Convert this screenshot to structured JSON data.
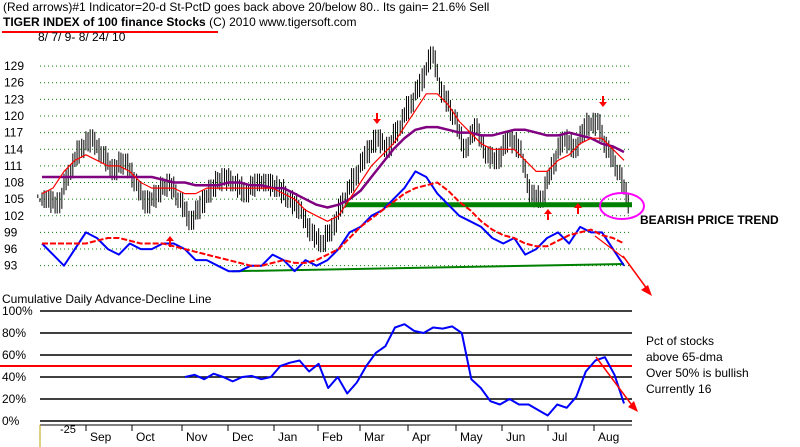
{
  "header": {
    "line1": "(Red arrows)#1 Indicator=20-d St-PctD goes back above 20/below 80.. Its gain= 21.6% Sell",
    "line2_title": "TIGER INDEX of  100 finance Stocks",
    "line2_rest": "(C) 2010  www.tigersoft.com",
    "date_range": "8/ 7/ 9- 8/ 24/ 10"
  },
  "annotations": {
    "bearish": "BEARISH PRICE TREND",
    "cum_ad": "Cumulative Daily Advance-Decline Line",
    "pct_line1": "Pct of stocks",
    "pct_line2": "above 65-dma",
    "pct_line3": "Over 50% is bullish",
    "pct_line4": "Currently  16",
    "bottom_stub": "-25"
  },
  "colors": {
    "price_bars": "#000000",
    "ma_short": "#ff0000",
    "ma_long": "#800080",
    "ad_line": "#0000ff",
    "support": "#008000",
    "pct_line": "#0000ff",
    "threshold": "#ff0000",
    "signal_arrows": "#ff0000",
    "grid": "#008000",
    "highlight_circle": "#ff00ff"
  },
  "chart_data": [
    {
      "type": "line",
      "title": "TIGER INDEX of  100 finance Stocks",
      "x_labels": [
        "Sep",
        "Oct",
        "Nov",
        "Dec",
        "Jan",
        "Feb",
        "Mar",
        "Apr",
        "May",
        "Jun",
        "Jul",
        "Aug"
      ],
      "y_ticks": [
        93,
        96,
        99,
        102,
        105,
        108,
        111,
        114,
        117,
        120,
        123,
        126,
        129
      ],
      "ylim": [
        91.5,
        131
      ],
      "grid": true,
      "series": [
        {
          "role": "price",
          "values": [
            105,
            104,
            110,
            114,
            116,
            113,
            110,
            112,
            108,
            104,
            106,
            108,
            105,
            101,
            104,
            107,
            109,
            108,
            106,
            108,
            108,
            107,
            105,
            103,
            99,
            97,
            100,
            105,
            109,
            113,
            116,
            114,
            118,
            122,
            126,
            131,
            124,
            120,
            114,
            118,
            113,
            112,
            116,
            114,
            106,
            105,
            111,
            116,
            114,
            118,
            119,
            114,
            110,
            104
          ]
        },
        {
          "role": "ma_short",
          "values": [
            106,
            107,
            110,
            112,
            113,
            112,
            111,
            111,
            110,
            108,
            107,
            107,
            107,
            106,
            106,
            107,
            107,
            107,
            107,
            107,
            107,
            107,
            106,
            105,
            103,
            102,
            101,
            102,
            105,
            108,
            111,
            113,
            115,
            118,
            121,
            124,
            124,
            122,
            119,
            117,
            115,
            114,
            114,
            114,
            112,
            110,
            110,
            112,
            113,
            115,
            116,
            116,
            114,
            112
          ]
        },
        {
          "role": "ma_long",
          "values": [
            109,
            109,
            109,
            109,
            109,
            109,
            109,
            109,
            109,
            109,
            109,
            108.5,
            108,
            108,
            107.5,
            107.5,
            107.5,
            108,
            108,
            107.5,
            107.5,
            107,
            107,
            106,
            105,
            104,
            103.5,
            104,
            105,
            106.5,
            109,
            111.5,
            114,
            116,
            117.5,
            118,
            118,
            117.5,
            117,
            117,
            116.5,
            116.5,
            117,
            117.5,
            117.5,
            117,
            116.5,
            116.5,
            117,
            116.5,
            116,
            115,
            114.5,
            113.5
          ]
        },
        {
          "role": "ad_line",
          "values": [
            97,
            95,
            93,
            96,
            99,
            98,
            96,
            95,
            97,
            96,
            96,
            97,
            97,
            96,
            94,
            94,
            93,
            92,
            92,
            93,
            93,
            95,
            94,
            92,
            94,
            93,
            94,
            96,
            99,
            100,
            102,
            103,
            105,
            107,
            110,
            109,
            106,
            104,
            102,
            101,
            100,
            98,
            97,
            98,
            95,
            96,
            98,
            99,
            97,
            100,
            99,
            99,
            96,
            93
          ]
        },
        {
          "role": "ad_ma",
          "values": [
            97,
            97,
            97,
            97,
            97,
            97.5,
            98,
            98,
            97.5,
            97,
            97,
            97,
            96.5,
            96,
            95.5,
            95,
            94.5,
            94,
            93.5,
            93,
            93,
            93.5,
            94,
            93.5,
            93.5,
            94,
            95,
            96,
            98,
            100,
            101.5,
            103,
            104.5,
            106,
            107,
            107.5,
            108,
            106.5,
            104.5,
            103,
            101,
            99.5,
            98.5,
            98,
            97,
            96.5,
            96.5,
            97.5,
            98.5,
            99,
            99.5,
            98.5,
            98,
            97
          ]
        }
      ],
      "support_line": {
        "start": 104,
        "end": 104
      },
      "ad_trend_line": {
        "start": 92,
        "end": 93.3
      }
    },
    {
      "type": "line",
      "y_ticks": [
        "100%",
        "80%",
        "60%",
        "40%",
        "20%",
        "0%"
      ],
      "ylim": [
        0,
        100
      ],
      "threshold": 50,
      "series": [
        {
          "role": "pct_above_65dma",
          "values": [
            null,
            null,
            null,
            null,
            null,
            null,
            null,
            40,
            42,
            38,
            43,
            40,
            36,
            40,
            41,
            38,
            40,
            50,
            53,
            55,
            45,
            52,
            30,
            40,
            25,
            35,
            50,
            62,
            68,
            85,
            88,
            82,
            80,
            85,
            84,
            86,
            80,
            38,
            30,
            18,
            15,
            20,
            15,
            15,
            10,
            5,
            15,
            12,
            22,
            45,
            55,
            58,
            42,
            16
          ]
        }
      ]
    }
  ]
}
